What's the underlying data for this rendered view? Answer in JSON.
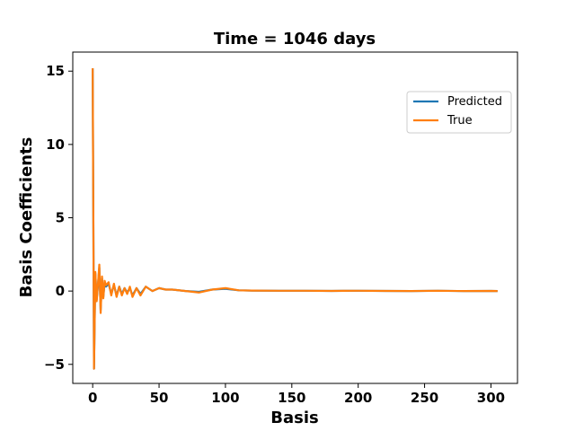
{
  "chart_data": {
    "type": "line",
    "title": "Time = 1046 days",
    "xlabel": "Basis",
    "ylabel": "Basis Coefficients",
    "xlim": [
      -15,
      320
    ],
    "ylim": [
      -6.3,
      16.3
    ],
    "xticks": [
      0,
      50,
      100,
      150,
      200,
      250,
      300
    ],
    "yticks": [
      -5,
      0,
      5,
      10,
      15
    ],
    "x_tick_labels": [
      "0",
      "50",
      "100",
      "150",
      "200",
      "250",
      "300"
    ],
    "y_tick_labels": [
      "−5",
      "0",
      "5",
      "10",
      "15"
    ],
    "grid": false,
    "legend_position": "upper-right",
    "series": [
      {
        "name": "Predicted",
        "color": "#1f77b4",
        "x": [
          0,
          1,
          2,
          3,
          4,
          5,
          6,
          7,
          8,
          9,
          10,
          12,
          14,
          16,
          18,
          20,
          22,
          24,
          26,
          28,
          30,
          33,
          36,
          40,
          45,
          50,
          55,
          60,
          70,
          80,
          90,
          100,
          110,
          120,
          140,
          160,
          180,
          200,
          220,
          240,
          260,
          280,
          300,
          305
        ],
        "y": [
          15.2,
          -5.3,
          1.2,
          -0.6,
          0.4,
          1.6,
          -1.3,
          0.9,
          -0.4,
          0.6,
          0.3,
          0.5,
          -0.2,
          0.4,
          -0.3,
          0.3,
          -0.2,
          0.2,
          -0.1,
          0.2,
          -0.3,
          0.2,
          -0.2,
          0.3,
          0.0,
          0.2,
          0.1,
          0.1,
          0.0,
          -0.05,
          0.1,
          0.15,
          0.05,
          0.03,
          0.02,
          0.02,
          0.01,
          0.02,
          0.01,
          0.0,
          0.02,
          0.0,
          0.01,
          0.0
        ]
      },
      {
        "name": "True",
        "color": "#ff7f0e",
        "x": [
          0,
          1,
          2,
          3,
          4,
          5,
          6,
          7,
          8,
          9,
          10,
          12,
          14,
          16,
          18,
          20,
          22,
          24,
          26,
          28,
          30,
          33,
          36,
          40,
          45,
          50,
          55,
          60,
          70,
          80,
          90,
          100,
          110,
          120,
          140,
          160,
          180,
          200,
          220,
          240,
          260,
          280,
          300,
          305
        ],
        "y": [
          15.2,
          -5.3,
          1.3,
          -0.7,
          0.5,
          1.8,
          -1.5,
          1.0,
          -0.5,
          0.7,
          0.4,
          0.6,
          -0.3,
          0.5,
          -0.4,
          0.3,
          -0.3,
          0.2,
          -0.2,
          0.3,
          -0.4,
          0.2,
          -0.3,
          0.3,
          0.0,
          0.2,
          0.1,
          0.1,
          0.0,
          -0.1,
          0.1,
          0.2,
          0.05,
          0.03,
          0.02,
          0.02,
          0.01,
          0.02,
          0.01,
          0.0,
          0.02,
          0.0,
          0.01,
          0.0
        ]
      }
    ]
  }
}
